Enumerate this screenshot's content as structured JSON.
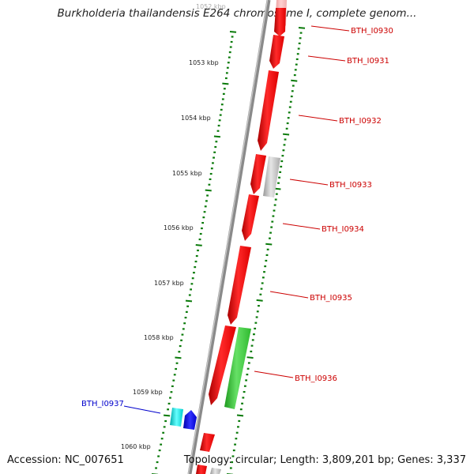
{
  "title": "Burkholderia thailandensis E264 chromosome I, complete genom...",
  "footer": {
    "accession": "Accession: NC_007651",
    "topology": "Topology: circular; Length: 3,809,201 bp; Genes: 3,337"
  },
  "ruler_labels": [
    "1052 kbp",
    "1053 kbp",
    "1054 kbp",
    "1055 kbp",
    "1056 kbp",
    "1057 kbp",
    "1058 kbp",
    "1059 kbp",
    "1060 kbp"
  ],
  "gene_labels": [
    "BTH_I0930",
    "BTH_I0931",
    "BTH_I0932",
    "BTH_I0933",
    "BTH_I0934",
    "BTH_I0935",
    "BTH_I0936",
    "BTH_I0937"
  ],
  "colors": {
    "forward_gene": "#ff0000",
    "label_forward": "#cc0000",
    "label_reverse": "#0000cc",
    "ruler_ticks": "#0a7a0a",
    "highlight_gene": "#33cc33",
    "gray_gene": "#bbbbbb",
    "cyan_gene": "#00e0e0",
    "blue_gene": "#0000ee",
    "backbone": "#888888"
  }
}
